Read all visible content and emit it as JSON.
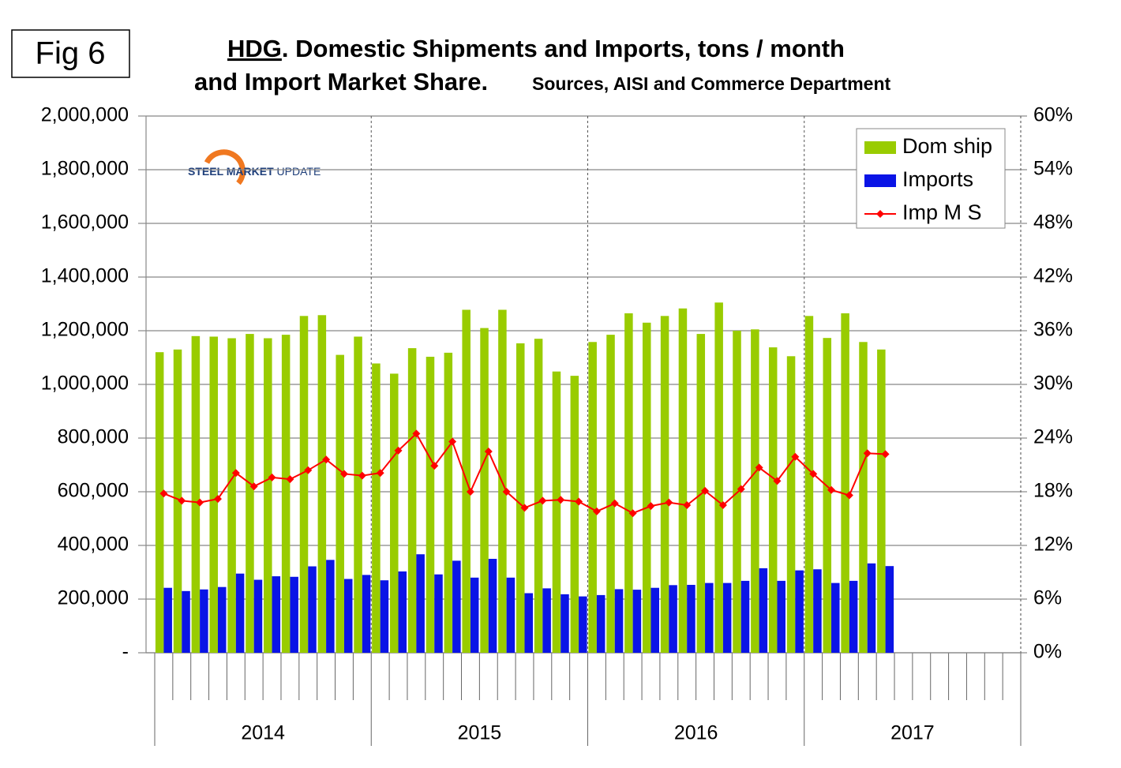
{
  "chart_data": {
    "type": "bar",
    "badge": "Fig 6",
    "title_lead": "HDG",
    "title": ". Domestic Shipments and Imports, tons / month",
    "subtitle": "and Import Market Share.",
    "source": "Sources, AISI and Commerce Department",
    "logo": [
      "STEEL MARKET",
      "UPDATE"
    ],
    "categories": [
      null,
      null,
      null,
      null,
      null,
      null,
      null,
      null,
      null,
      null,
      null,
      null,
      null,
      null,
      null,
      null,
      null,
      null,
      null,
      null,
      null,
      null,
      null,
      null,
      null,
      null,
      null,
      null,
      null,
      null,
      null,
      null,
      null,
      null,
      null,
      null,
      null,
      null,
      null,
      null,
      null,
      null,
      null,
      null,
      null,
      null,
      null,
      null
    ],
    "groups": [
      "2014",
      "2015",
      "2016",
      "2017"
    ],
    "series": [
      {
        "name": "Dom ship",
        "color": "#99cc00",
        "values": [
          1120000,
          1130000,
          1180000,
          1178000,
          1172000,
          1188000,
          1172000,
          1185000,
          1255000,
          1258000,
          1110000,
          1178000,
          1078000,
          1040000,
          1135000,
          1103000,
          1118000,
          1278000,
          1210000,
          1278000,
          1153000,
          1170000,
          1048000,
          1032000,
          1158000,
          1185000,
          1265000,
          1230000,
          1255000,
          1283000,
          1188000,
          1305000,
          1200000,
          1205000,
          1138000,
          1105000,
          1255000,
          1173000,
          1265000,
          1158000,
          1130000,
          null,
          null,
          null,
          null,
          null,
          null,
          null
        ]
      },
      {
        "name": "Imports",
        "color": "#0a14e6",
        "values": [
          242000,
          230000,
          236000,
          245000,
          295000,
          272000,
          285000,
          283000,
          322000,
          346000,
          275000,
          290000,
          270000,
          303000,
          367000,
          292000,
          343000,
          280000,
          350000,
          280000,
          222000,
          240000,
          218000,
          210000,
          215000,
          237000,
          235000,
          242000,
          252000,
          253000,
          260000,
          260000,
          268000,
          315000,
          268000,
          307000,
          311000,
          260000,
          268000,
          333000,
          323000,
          null,
          null,
          null,
          null,
          null,
          null,
          null
        ]
      },
      {
        "name": "Imp M S",
        "color": "#ff0000",
        "type": "line",
        "axis": "y2",
        "values": [
          17.8,
          17.0,
          16.8,
          17.2,
          20.1,
          18.6,
          19.6,
          19.4,
          20.4,
          21.6,
          20.0,
          19.8,
          20.1,
          22.6,
          24.5,
          20.9,
          23.6,
          18.0,
          22.5,
          18.0,
          16.2,
          17.0,
          17.1,
          16.9,
          15.8,
          16.7,
          15.6,
          16.4,
          16.8,
          16.5,
          18.1,
          16.5,
          18.3,
          20.7,
          19.2,
          21.9,
          20.0,
          18.2,
          17.6,
          22.3,
          22.2,
          null,
          null,
          null,
          null,
          null,
          null,
          null
        ]
      }
    ],
    "ylim": [
      0,
      2000000
    ],
    "yticks": [
      {
        "value": 0,
        "label": "-"
      },
      {
        "value": 200000,
        "label": "200,000"
      },
      {
        "value": 400000,
        "label": "400,000"
      },
      {
        "value": 600000,
        "label": "600,000"
      },
      {
        "value": 800000,
        "label": "800,000"
      },
      {
        "value": 1000000,
        "label": "1,000,000"
      },
      {
        "value": 1200000,
        "label": "1,200,000"
      },
      {
        "value": 1400000,
        "label": "1,400,000"
      },
      {
        "value": 1600000,
        "label": "1,600,000"
      },
      {
        "value": 1800000,
        "label": "1,800,000"
      },
      {
        "value": 2000000,
        "label": "2,000,000"
      }
    ],
    "y2lim": [
      0,
      60
    ],
    "y2ticks": [
      {
        "value": 0,
        "label": "0%"
      },
      {
        "value": 6,
        "label": "6%"
      },
      {
        "value": 12,
        "label": "12%"
      },
      {
        "value": 18,
        "label": "18%"
      },
      {
        "value": 24,
        "label": "24%"
      },
      {
        "value": 30,
        "label": "30%"
      },
      {
        "value": 36,
        "label": "36%"
      },
      {
        "value": 42,
        "label": "42%"
      },
      {
        "value": 48,
        "label": "48%"
      },
      {
        "value": 54,
        "label": "54%"
      },
      {
        "value": 60,
        "label": "60%"
      }
    ],
    "grid": true,
    "legend": "top-right"
  }
}
